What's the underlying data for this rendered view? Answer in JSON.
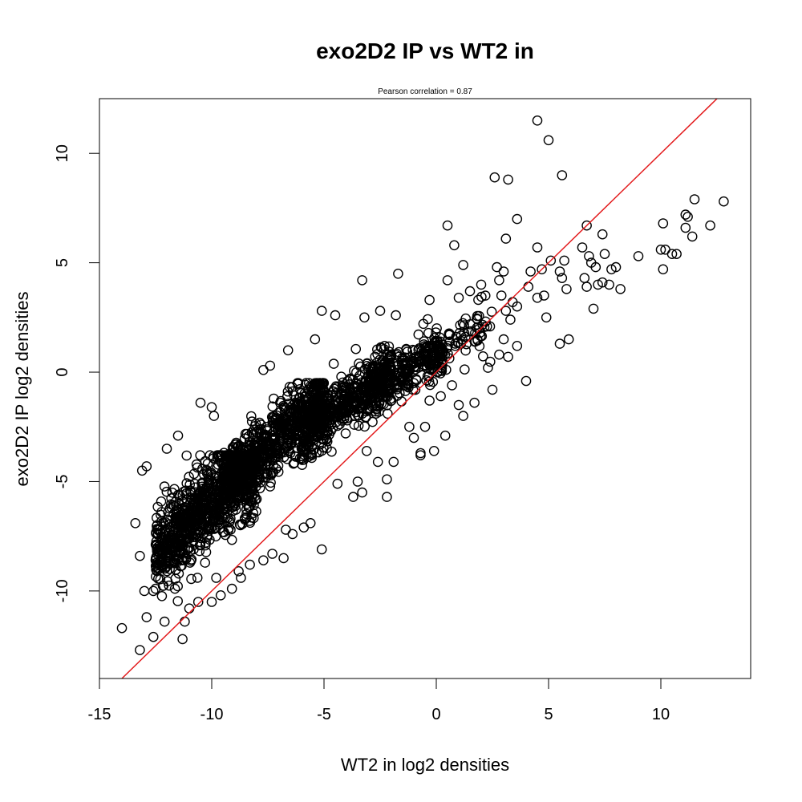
{
  "chart_data": {
    "type": "scatter",
    "title": "exo2D2 IP vs WT2 in",
    "subtitle": "Pearson correlation =  0.87",
    "xlabel": "WT2 in log2 densities",
    "ylabel": "exo2D2 IP log2 densities",
    "xlim": [
      -15,
      14
    ],
    "ylim": [
      -14,
      12.5
    ],
    "x_ticks": [
      -15,
      -10,
      -5,
      0,
      5,
      10
    ],
    "y_ticks": [
      -10,
      -5,
      0,
      5,
      10
    ],
    "reference_line": {
      "slope": 1,
      "intercept": 0,
      "color": "#e31a1c"
    },
    "point_marker": "open-circle",
    "points": [
      [
        -14.0,
        -11.7
      ],
      [
        -13.2,
        -12.7
      ],
      [
        -12.9,
        -11.2
      ],
      [
        -12.6,
        -12.1
      ],
      [
        -12.1,
        -11.4
      ],
      [
        -11.3,
        -12.2
      ],
      [
        -11.2,
        -11.4
      ],
      [
        -11.0,
        -10.8
      ],
      [
        -10.6,
        -10.5
      ],
      [
        -10.0,
        -10.5
      ],
      [
        -13.1,
        -4.5
      ],
      [
        -12.9,
        -4.3
      ],
      [
        -13.4,
        -6.9
      ],
      [
        -13.0,
        -10.0
      ],
      [
        -13.2,
        -8.4
      ],
      [
        -12.6,
        -10.0
      ],
      [
        -12.0,
        -3.5
      ],
      [
        -11.5,
        -2.9
      ],
      [
        -10.5,
        -1.4
      ],
      [
        -9.9,
        -2.0
      ],
      [
        -10.0,
        -1.6
      ],
      [
        -7.7,
        0.1
      ],
      [
        -7.4,
        0.3
      ],
      [
        -6.6,
        1.0
      ],
      [
        -5.4,
        1.5
      ],
      [
        -5.1,
        2.8
      ],
      [
        -4.5,
        2.6
      ],
      [
        -3.3,
        4.2
      ],
      [
        -3.2,
        2.5
      ],
      [
        -2.5,
        2.8
      ],
      [
        -1.8,
        2.6
      ],
      [
        -1.7,
        4.5
      ],
      [
        -0.3,
        3.3
      ],
      [
        0.5,
        6.7
      ],
      [
        0.8,
        5.8
      ],
      [
        0.5,
        4.2
      ],
      [
        1.2,
        4.9
      ],
      [
        1.0,
        3.4
      ],
      [
        1.5,
        3.7
      ],
      [
        2.0,
        4.0
      ],
      [
        2.7,
        4.8
      ],
      [
        2.8,
        4.2
      ],
      [
        2.9,
        3.5
      ],
      [
        3.0,
        4.6
      ],
      [
        3.1,
        2.8
      ],
      [
        3.4,
        3.2
      ],
      [
        3.6,
        3.0
      ],
      [
        3.6,
        1.2
      ],
      [
        3.3,
        2.4
      ],
      [
        3.0,
        1.5
      ],
      [
        2.8,
        0.8
      ],
      [
        2.5,
        -0.8
      ],
      [
        2.3,
        0.2
      ],
      [
        3.2,
        0.7
      ],
      [
        4.0,
        -0.4
      ],
      [
        2.6,
        8.9
      ],
      [
        3.2,
        8.8
      ],
      [
        3.6,
        7.0
      ],
      [
        3.1,
        6.1
      ],
      [
        4.5,
        11.5
      ],
      [
        5.0,
        10.6
      ],
      [
        5.6,
        9.0
      ],
      [
        4.2,
        4.6
      ],
      [
        4.5,
        5.7
      ],
      [
        4.7,
        4.7
      ],
      [
        5.1,
        5.1
      ],
      [
        4.1,
        3.9
      ],
      [
        4.5,
        3.4
      ],
      [
        4.8,
        3.5
      ],
      [
        4.9,
        2.5
      ],
      [
        5.5,
        4.6
      ],
      [
        5.7,
        5.1
      ],
      [
        5.6,
        4.3
      ],
      [
        5.8,
        3.8
      ],
      [
        5.5,
        1.3
      ],
      [
        5.9,
        1.5
      ],
      [
        6.5,
        5.7
      ],
      [
        6.7,
        6.7
      ],
      [
        6.8,
        5.3
      ],
      [
        6.9,
        5.0
      ],
      [
        7.1,
        4.8
      ],
      [
        7.4,
        6.3
      ],
      [
        7.5,
        5.4
      ],
      [
        7.4,
        4.1
      ],
      [
        7.2,
        4.0
      ],
      [
        7.7,
        4.0
      ],
      [
        6.6,
        4.3
      ],
      [
        6.7,
        3.9
      ],
      [
        7.0,
        2.9
      ],
      [
        7.8,
        4.7
      ],
      [
        8.0,
        4.8
      ],
      [
        8.2,
        3.8
      ],
      [
        9.0,
        5.3
      ],
      [
        10.0,
        5.6
      ],
      [
        10.1,
        6.8
      ],
      [
        10.1,
        4.7
      ],
      [
        10.2,
        5.6
      ],
      [
        10.5,
        5.4
      ],
      [
        10.7,
        5.4
      ],
      [
        11.1,
        7.2
      ],
      [
        11.1,
        6.6
      ],
      [
        11.2,
        7.1
      ],
      [
        11.4,
        6.2
      ],
      [
        11.5,
        7.9
      ],
      [
        12.2,
        6.7
      ],
      [
        12.8,
        7.8
      ],
      [
        -4.4,
        -5.1
      ],
      [
        -3.7,
        -5.7
      ],
      [
        -3.3,
        -5.5
      ],
      [
        -3.5,
        -5.0
      ],
      [
        -2.2,
        -4.9
      ],
      [
        -2.2,
        -5.7
      ],
      [
        -0.7,
        -3.8
      ],
      [
        -0.7,
        -3.7
      ],
      [
        -0.1,
        -3.6
      ],
      [
        0.4,
        -2.9
      ],
      [
        -1.0,
        -3.0
      ],
      [
        -1.9,
        -4.1
      ],
      [
        -2.6,
        -4.1
      ],
      [
        -3.1,
        -3.6
      ],
      [
        -5.1,
        -8.1
      ],
      [
        -5.9,
        -7.1
      ],
      [
        -6.4,
        -7.4
      ],
      [
        -6.7,
        -7.2
      ],
      [
        -5.6,
        -6.9
      ],
      [
        -6.8,
        -8.5
      ],
      [
        -7.3,
        -8.3
      ],
      [
        -7.7,
        -8.6
      ],
      [
        -8.3,
        -8.8
      ],
      [
        -8.7,
        -9.4
      ],
      [
        -8.8,
        -9.1
      ],
      [
        -9.1,
        -9.9
      ],
      [
        -9.8,
        -9.4
      ],
      [
        -9.6,
        -10.2
      ],
      [
        -8.0,
        -5.8
      ],
      [
        -7.6,
        -4.3
      ],
      [
        -6.5,
        -3.7
      ],
      [
        -5.8,
        -3.4
      ],
      [
        -5.0,
        -2.3
      ],
      [
        -4.2,
        -1.0
      ],
      [
        -3.3,
        -1.9
      ],
      [
        -2.0,
        -1.3
      ],
      [
        -1.0,
        -0.5
      ],
      [
        -0.3,
        -1.3
      ],
      [
        0.7,
        -0.6
      ],
      [
        1.7,
        -1.4
      ],
      [
        1.2,
        -2.0
      ],
      [
        1.0,
        -1.5
      ],
      [
        0.2,
        -1.1
      ],
      [
        -0.5,
        -2.5
      ],
      [
        -1.2,
        -2.5
      ]
    ],
    "density_clouds": [
      {
        "x_from": -12.5,
        "x_to": -8.0,
        "y_from": -11.0,
        "y_to": -3.8,
        "y_center_slope": 0.98,
        "y_center_at_from": -8.3,
        "spread": 1.7,
        "count": 900
      },
      {
        "x_from": -9.5,
        "x_to": -5.0,
        "y_from": -8.5,
        "y_to": -0.5,
        "y_center_slope": 0.9,
        "y_center_at_from": -5.2,
        "spread": 1.3,
        "count": 750
      },
      {
        "x_from": -6.0,
        "x_to": -2.0,
        "y_from": -5.5,
        "y_to": 1.8,
        "y_center_slope": 0.75,
        "y_center_at_from": -2.9,
        "spread": 1.1,
        "count": 500
      },
      {
        "x_from": -3.0,
        "x_to": 0.3,
        "y_from": -3.5,
        "y_to": 2.4,
        "y_center_slope": 0.55,
        "y_center_at_from": -0.9,
        "spread": 0.8,
        "count": 260
      },
      {
        "x_from": -0.6,
        "x_to": 2.5,
        "y_from": -2.5,
        "y_to": 3.5,
        "y_center_slope": 0.4,
        "y_center_at_from": 0.9,
        "spread": 1.0,
        "count": 90
      }
    ]
  }
}
